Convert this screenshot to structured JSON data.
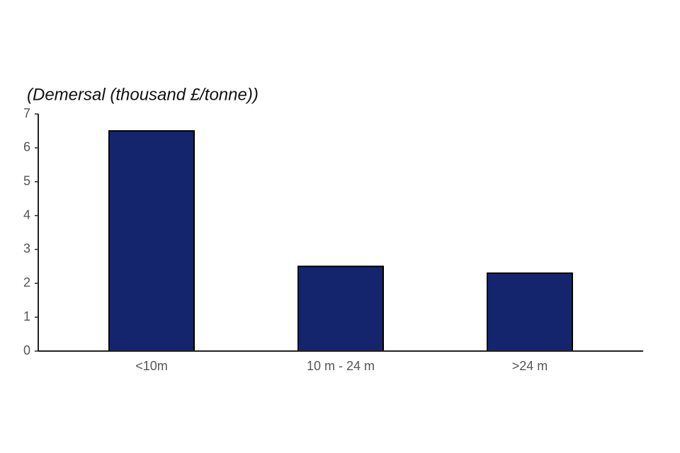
{
  "chart_data": {
    "type": "bar",
    "title": "(Demersal (thousand £/tonne))",
    "categories": [
      "<10m",
      "10 m - 24 m",
      ">24 m"
    ],
    "values": [
      6.5,
      2.5,
      2.3
    ],
    "color": "#14256e",
    "ylim": [
      0,
      7
    ],
    "yticks": [
      0,
      1,
      2,
      3,
      4,
      5,
      6,
      7
    ]
  }
}
